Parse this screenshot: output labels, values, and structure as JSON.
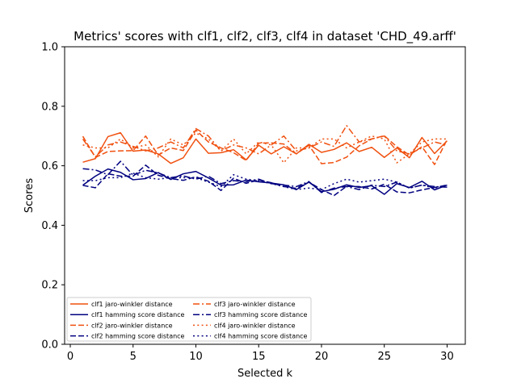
{
  "chart_data": {
    "type": "line",
    "title": "Metrics' scores with clf1, clf2, clf3, clf4 in dataset 'CHD_49.arff'",
    "xlabel": "Selected k",
    "ylabel": "Scores",
    "xlim": [
      -0.45,
      31.45
    ],
    "ylim": [
      0.0,
      1.0
    ],
    "xticks": [
      0,
      5,
      10,
      15,
      20,
      25,
      30
    ],
    "yticks": [
      0.0,
      0.2,
      0.4,
      0.6,
      0.8,
      1.0
    ],
    "xtick_labels": [
      "0",
      "5",
      "10",
      "15",
      "20",
      "25",
      "30"
    ],
    "ytick_labels": [
      "0.0",
      "0.2",
      "0.4",
      "0.6",
      "0.8",
      "1.0"
    ],
    "grid": false,
    "legend_position": "lower-left",
    "legend_columns": 2,
    "x": [
      1,
      2,
      3,
      4,
      5,
      6,
      7,
      8,
      9,
      10,
      11,
      12,
      13,
      14,
      15,
      16,
      17,
      18,
      19,
      20,
      21,
      22,
      23,
      24,
      25,
      26,
      27,
      28,
      29,
      30
    ],
    "series": [
      {
        "name": "clf1 jaro-winkler distance",
        "color": "#f0500f",
        "dash": "solid",
        "values": [
          0.612,
          0.624,
          0.698,
          0.711,
          0.649,
          0.653,
          0.64,
          0.608,
          0.627,
          0.69,
          0.642,
          0.644,
          0.654,
          0.62,
          0.669,
          0.64,
          0.664,
          0.64,
          0.672,
          0.645,
          0.655,
          0.677,
          0.648,
          0.662,
          0.628,
          0.66,
          0.627,
          0.695,
          0.641,
          0.684
        ]
      },
      {
        "name": "clf1 hamming score distance",
        "color": "#000080",
        "dash": "solid",
        "values": [
          0.535,
          0.565,
          0.589,
          0.578,
          0.553,
          0.557,
          0.577,
          0.554,
          0.573,
          0.581,
          0.559,
          0.535,
          0.536,
          0.552,
          0.546,
          0.542,
          0.536,
          0.52,
          0.545,
          0.513,
          0.521,
          0.536,
          0.527,
          0.533,
          0.504,
          0.54,
          0.527,
          0.548,
          0.519,
          0.535
        ]
      },
      {
        "name": "clf2 jaro-winkler distance",
        "color": "#f0500f",
        "dash": "dashed",
        "values": [
          0.699,
          0.628,
          0.648,
          0.65,
          0.651,
          0.7,
          0.636,
          0.66,
          0.651,
          0.72,
          0.68,
          0.66,
          0.644,
          0.618,
          0.676,
          0.677,
          0.673,
          0.64,
          0.669,
          0.607,
          0.611,
          0.629,
          0.667,
          0.69,
          0.701,
          0.664,
          0.636,
          0.664,
          0.604,
          0.688
        ]
      },
      {
        "name": "clf2 hamming score distance",
        "color": "#000080",
        "dash": "dashed",
        "values": [
          0.534,
          0.526,
          0.573,
          0.565,
          0.565,
          0.602,
          0.568,
          0.557,
          0.551,
          0.563,
          0.548,
          0.517,
          0.558,
          0.541,
          0.552,
          0.543,
          0.53,
          0.524,
          0.545,
          0.52,
          0.5,
          0.531,
          0.53,
          0.522,
          0.538,
          0.512,
          0.509,
          0.519,
          0.527,
          0.535
        ]
      },
      {
        "name": "clf3 jaro-winkler distance",
        "color": "#f0500f",
        "dash": "dashdot",
        "values": [
          0.69,
          0.63,
          0.67,
          0.68,
          0.665,
          0.65,
          0.66,
          0.68,
          0.66,
          0.725,
          0.7,
          0.65,
          0.67,
          0.66,
          0.64,
          0.67,
          0.7,
          0.65,
          0.66,
          0.68,
          0.665,
          0.735,
          0.68,
          0.69,
          0.7,
          0.65,
          0.64,
          0.66,
          0.68,
          0.67
        ]
      },
      {
        "name": "clf3 hamming score distance",
        "color": "#000080",
        "dash": "dashdot",
        "values": [
          0.59,
          0.586,
          0.57,
          0.615,
          0.568,
          0.585,
          0.576,
          0.56,
          0.566,
          0.555,
          0.565,
          0.54,
          0.55,
          0.546,
          0.555,
          0.54,
          0.535,
          0.53,
          0.547,
          0.51,
          0.525,
          0.53,
          0.52,
          0.535,
          0.53,
          0.545,
          0.525,
          0.535,
          0.53,
          0.528
        ]
      },
      {
        "name": "clf4 jaro-winkler distance",
        "color": "#f0500f",
        "dash": "dotted",
        "values": [
          0.67,
          0.66,
          0.66,
          0.69,
          0.66,
          0.67,
          0.63,
          0.69,
          0.67,
          0.71,
          0.69,
          0.65,
          0.69,
          0.64,
          0.68,
          0.67,
          0.61,
          0.66,
          0.66,
          0.69,
          0.69,
          0.66,
          0.68,
          0.7,
          0.69,
          0.61,
          0.64,
          0.68,
          0.69,
          0.69
        ]
      },
      {
        "name": "clf4 hamming score distance",
        "color": "#000080",
        "dash": "dotted",
        "values": [
          0.55,
          0.55,
          0.56,
          0.56,
          0.575,
          0.56,
          0.555,
          0.56,
          0.56,
          0.56,
          0.545,
          0.53,
          0.57,
          0.555,
          0.55,
          0.54,
          0.53,
          0.52,
          0.525,
          0.52,
          0.54,
          0.555,
          0.545,
          0.55,
          0.555,
          0.545,
          0.525,
          0.535,
          0.525,
          0.535
        ]
      }
    ]
  }
}
